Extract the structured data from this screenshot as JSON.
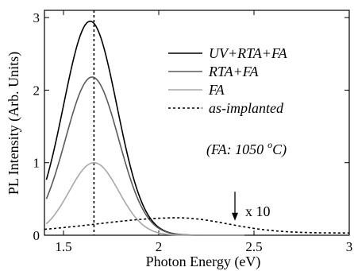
{
  "chart_data": {
    "type": "line",
    "title": "",
    "xlabel": "Photon Energy (eV)",
    "ylabel": "PL Intensity (Arb. Units)",
    "xlim": [
      1.4,
      3.0
    ],
    "ylim": [
      0,
      3.1
    ],
    "x_ticks": [
      1.5,
      2.0,
      2.5,
      3.0
    ],
    "x_tick_labels": [
      "1.5",
      "2",
      "2.5",
      "3"
    ],
    "y_ticks": [
      0,
      1,
      2,
      3
    ],
    "y_tick_labels": [
      "0",
      "1",
      "2",
      "3"
    ],
    "grid": false,
    "legend_position": "top-right",
    "series": [
      {
        "name": "UV+RTA+FA",
        "color": "#000000",
        "dash": "solid",
        "shape": "gaussian",
        "peak_x": 1.64,
        "peak_y": 2.95,
        "sigma": 0.14
      },
      {
        "name": "RTA+FA",
        "color": "#5a5a5a",
        "dash": "solid",
        "shape": "gaussian",
        "peak_x": 1.65,
        "peak_y": 2.18,
        "sigma": 0.14
      },
      {
        "name": "FA",
        "color": "#a8a8a8",
        "dash": "solid",
        "shape": "gaussian",
        "peak_x": 1.66,
        "peak_y": 1.0,
        "sigma": 0.13
      },
      {
        "name": "as-implanted",
        "color": "#000000",
        "dash": "dotted",
        "shape": "broad-peak",
        "peak_x": 2.1,
        "peak_y": 0.24,
        "note_scale": "x 10"
      }
    ],
    "reference_line": {
      "x": 1.66,
      "style": "dotted"
    },
    "annotations": [
      {
        "text": "(FA: 1050",
        "superscript": "o",
        "suffix": "C)"
      },
      {
        "text": "x 10",
        "arrow_x": 2.4,
        "arrow_from_y": 0.6,
        "arrow_to_y": 0.2
      }
    ]
  }
}
